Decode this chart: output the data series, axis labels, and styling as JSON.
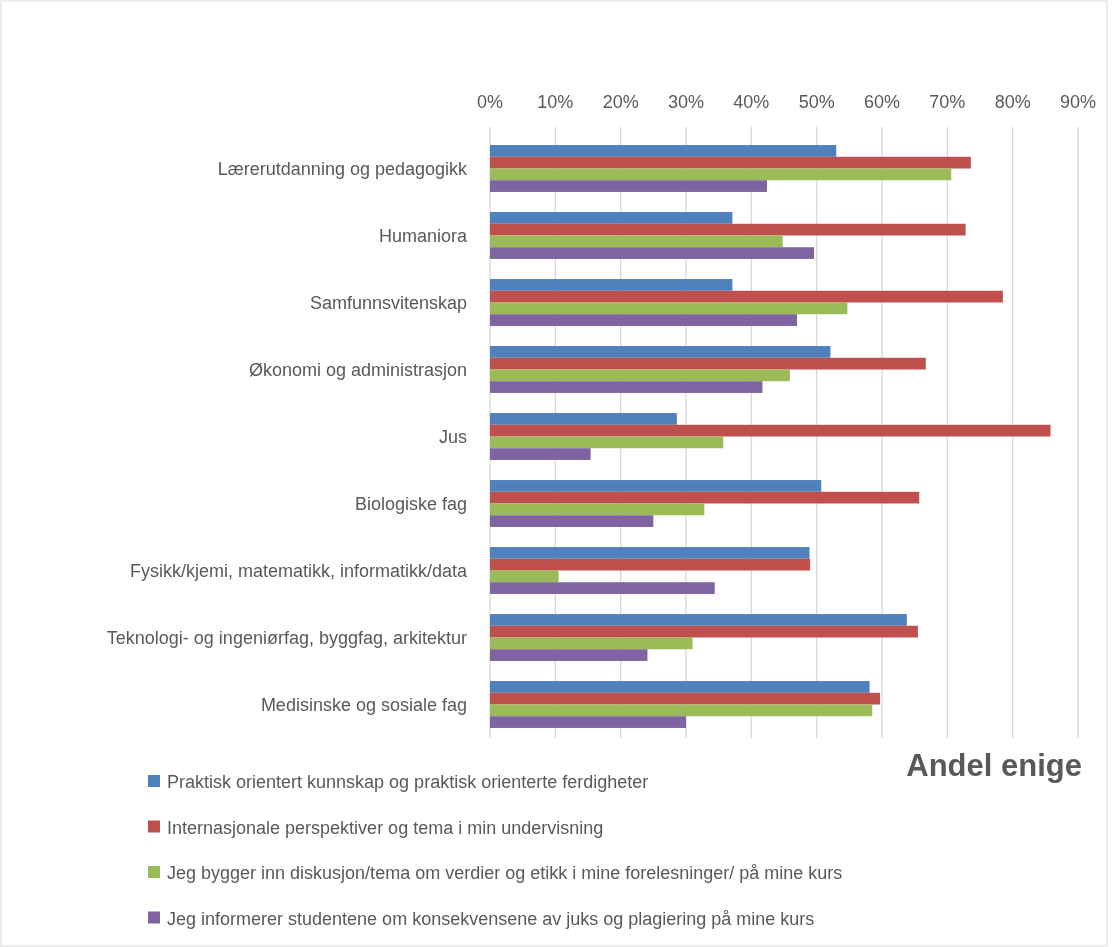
{
  "chart_data": {
    "type": "bar",
    "orientation": "horizontal",
    "xlabel": "Andel enige",
    "categories": [
      "Lærerutdanning og pedagogikk",
      "Humaniora",
      "Samfunnsvitenskap",
      "Økonomi og administrasjon",
      "Jus",
      "Biologiske fag",
      "Fysikk/kjemi, matematikk, informatikk/data",
      "Teknologi- og ingeniørfag, byggfag, arkitektur",
      "Medisinske og sosiale fag"
    ],
    "series": [
      {
        "name": "Praktisk orientert kunnskap og praktisk orienterte ferdigheter",
        "color": "#4f81bd",
        "values": [
          53.0,
          37.1,
          37.1,
          52.1,
          28.6,
          50.7,
          48.9,
          63.8,
          58.1
        ]
      },
      {
        "name": "Internasjonale perspektiver og tema i min undervisning",
        "color": "#c0504d",
        "values": [
          73.6,
          72.8,
          78.5,
          66.7,
          85.8,
          65.7,
          49.0,
          65.5,
          59.7
        ]
      },
      {
        "name": "Jeg bygger inn diskusjon/tema om verdier og etikk i mine forelesninger/ på mine kurs",
        "color": "#9bbb59",
        "values": [
          70.6,
          44.8,
          54.7,
          45.9,
          35.7,
          32.8,
          10.5,
          31.0,
          58.5
        ]
      },
      {
        "name": "Jeg informerer studentene om konsekvensene av juks og plagiering på mine kurs",
        "color": "#8064a2",
        "values": [
          42.4,
          49.6,
          47.0,
          41.7,
          15.4,
          25.0,
          34.4,
          24.1,
          30.0
        ]
      }
    ],
    "xlim": [
      0,
      90
    ],
    "xticks": [
      {
        "value": 0,
        "label": "0%"
      },
      {
        "value": 10,
        "label": "10%"
      },
      {
        "value": 20,
        "label": "20%"
      },
      {
        "value": 30,
        "label": "30%"
      },
      {
        "value": 40,
        "label": "40%"
      },
      {
        "value": 50,
        "label": "50%"
      },
      {
        "value": 60,
        "label": "60%"
      },
      {
        "value": 70,
        "label": "70%"
      },
      {
        "value": 80,
        "label": "80%"
      },
      {
        "value": 90,
        "label": "90%"
      }
    ],
    "grid": "x",
    "legend": "bottom"
  }
}
